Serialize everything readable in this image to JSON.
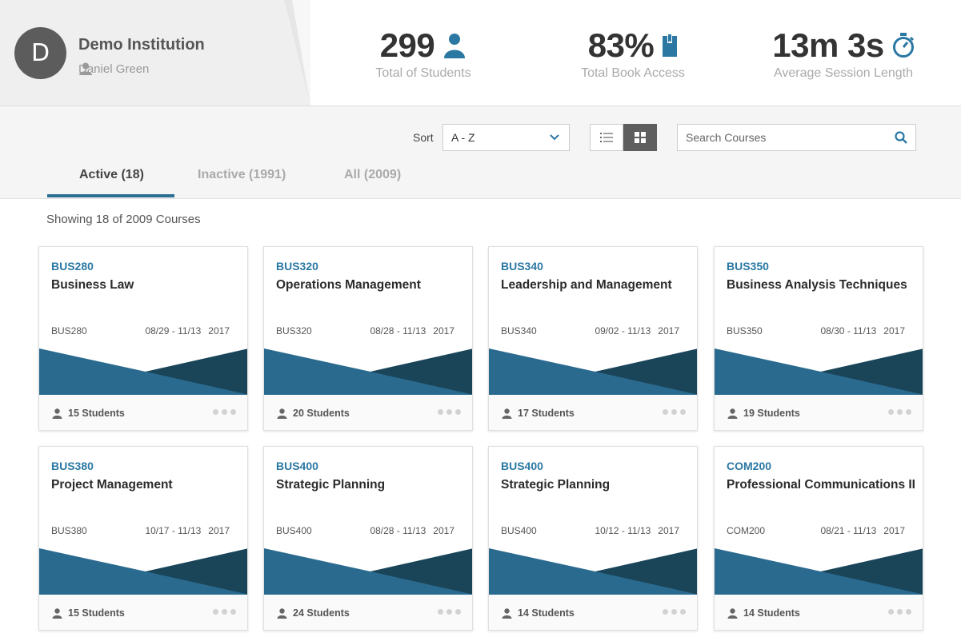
{
  "institution": {
    "avatar_letter": "D",
    "name": "Demo Institution",
    "user": "Daniel Green"
  },
  "stats": [
    {
      "value": "299",
      "label": "Total of Students",
      "icon": "person-icon"
    },
    {
      "value": "83%",
      "label": "Total Book Access",
      "icon": "book-icon"
    },
    {
      "value": "13m 3s",
      "label": "Average Session Length",
      "icon": "stopwatch-icon"
    }
  ],
  "toolbar": {
    "sort_label": "Sort",
    "sort_value": "A - Z",
    "search_placeholder": "Search Courses"
  },
  "tabs": [
    {
      "label": "Active (18)",
      "active": true
    },
    {
      "label": "Inactive (1991)",
      "active": false
    },
    {
      "label": "All (2009)",
      "active": false
    }
  ],
  "showing": "Showing 18 of 2009 Courses",
  "colors": {
    "accent": "#2b6f93",
    "banner_light": "#2a6a8f",
    "banner_dark": "#1a4458",
    "code": "#2b78a3"
  },
  "courses": [
    {
      "code": "BUS280",
      "title": "Business Law",
      "dates": "08/29 - 11/13",
      "year": "2017",
      "students": "15 Students"
    },
    {
      "code": "BUS320",
      "title": "Operations Management",
      "dates": "08/28 - 11/13",
      "year": "2017",
      "students": "20 Students"
    },
    {
      "code": "BUS340",
      "title": "Leadership and Management",
      "dates": "09/02 - 11/13",
      "year": "2017",
      "students": "17 Students"
    },
    {
      "code": "BUS350",
      "title": "Business Analysis Techniques",
      "dates": "08/30 - 11/13",
      "year": "2017",
      "students": "19 Students"
    },
    {
      "code": "BUS380",
      "title": "Project Management",
      "dates": "10/17 - 11/13",
      "year": "2017",
      "students": "15 Students"
    },
    {
      "code": "BUS400",
      "title": "Strategic Planning",
      "dates": "08/28 - 11/13",
      "year": "2017",
      "students": "24 Students"
    },
    {
      "code": "BUS400",
      "title": "Strategic Planning",
      "dates": "10/12 - 11/13",
      "year": "2017",
      "students": "14 Students"
    },
    {
      "code": "COM200",
      "title": "Professional Communications II",
      "dates": "08/21 - 11/13",
      "year": "2017",
      "students": "14 Students"
    }
  ]
}
